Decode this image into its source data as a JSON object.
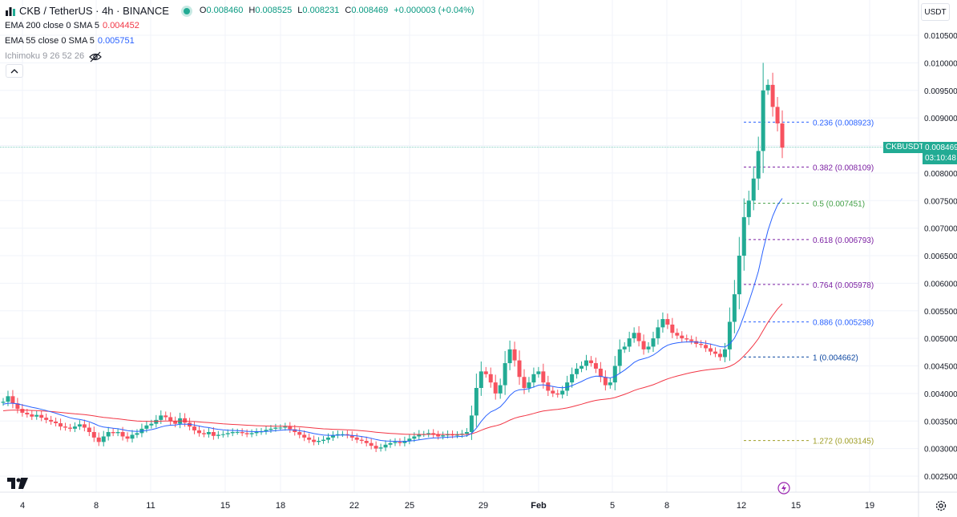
{
  "legend": {
    "symbol_title": "CKB / TetherUS · 4h · BINANCE",
    "open_label": "O",
    "open": "0.008460",
    "high_label": "H",
    "high": "0.008525",
    "low_label": "L",
    "low": "0.008231",
    "close_label": "C",
    "close": "0.008469",
    "change": "+0.000003 (+0.04%)",
    "indicators": {
      "ema200_name": "EMA 200 close 0 SMA 5",
      "ema200_value": "0.004452",
      "ema55_name": "EMA 55 close 0 SMA 5",
      "ema55_value": "0.005751",
      "ichimoku_name": "Ichimoku 9 26 52 26"
    }
  },
  "toolbar": {
    "currency": "USDT"
  },
  "price_tag": {
    "symbol": "CKBUSDT",
    "price": "0.008469",
    "countdown": "03:10:48"
  },
  "colors": {
    "up": "#22ab94",
    "down": "#f7525f",
    "ema200": "#f23645",
    "ema55": "#2962ff",
    "grid": "#f0f3fa"
  },
  "icons": [
    "chart-symbol-icon",
    "live-dot-icon",
    "eye-off-icon",
    "chevron-up-icon",
    "tradingview-logo",
    "flash-icon",
    "settings-icon"
  ],
  "chart_data": {
    "type": "candlestick",
    "y_ticks": [
      "0.002500",
      "0.003000",
      "0.003500",
      "0.004000",
      "0.004500",
      "0.005000",
      "0.005500",
      "0.006000",
      "0.006500",
      "0.007000",
      "0.007500",
      "0.008000",
      "0.008500",
      "0.009000",
      "0.009500",
      "0.010000",
      "0.010500"
    ],
    "y_range": [
      0.00225,
      0.01065
    ],
    "x_ticks": [
      "4",
      "8",
      "11",
      "15",
      "18",
      "22",
      "25",
      "29",
      "Feb",
      "5",
      "8",
      "12",
      "15",
      "19"
    ],
    "grid": true,
    "current_price": 0.008469,
    "fibonacci": [
      {
        "label": "0.236 (0.008923)",
        "value": 0.008923,
        "color": "#2962ff"
      },
      {
        "label": "0.382 (0.008109)",
        "value": 0.008109,
        "color": "#7b1fa2"
      },
      {
        "label": "0.5 (0.007451)",
        "value": 0.007451,
        "color": "#43a047"
      },
      {
        "label": "0.618 (0.006793)",
        "value": 0.006793,
        "color": "#7b1fa2"
      },
      {
        "label": "0.764 (0.005978)",
        "value": 0.005978,
        "color": "#7b1fa2"
      },
      {
        "label": "0.886 (0.005298)",
        "value": 0.005298,
        "color": "#2962ff"
      },
      {
        "label": "1 (0.004662)",
        "value": 0.004662,
        "color": "#0d47a1"
      },
      {
        "label": "1.272 (0.003145)",
        "value": 0.003145,
        "color": "#9e9d24"
      }
    ],
    "close_series": [
      0.00385,
      0.00395,
      0.00382,
      0.00372,
      0.00365,
      0.00362,
      0.00358,
      0.00361,
      0.00356,
      0.00352,
      0.00349,
      0.00346,
      0.0034,
      0.00338,
      0.00336,
      0.0034,
      0.00344,
      0.00338,
      0.0033,
      0.0032,
      0.00312,
      0.00322,
      0.0033,
      0.00328,
      0.0033,
      0.00322,
      0.00318,
      0.00325,
      0.00328,
      0.00336,
      0.00342,
      0.00345,
      0.00352,
      0.0036,
      0.00357,
      0.0035,
      0.00345,
      0.00355,
      0.00347,
      0.0034,
      0.00333,
      0.00328,
      0.00326,
      0.0033,
      0.00323,
      0.00325,
      0.00326,
      0.00328,
      0.0033,
      0.0033,
      0.00328,
      0.00326,
      0.00328,
      0.0033,
      0.00331,
      0.00334,
      0.00336,
      0.00338,
      0.00338,
      0.0034,
      0.00335,
      0.0033,
      0.00325,
      0.0032,
      0.00316,
      0.00312,
      0.00314,
      0.00316,
      0.0032,
      0.00324,
      0.00326,
      0.00326,
      0.00324,
      0.0032,
      0.00316,
      0.00314,
      0.0031,
      0.00305,
      0.003,
      0.00302,
      0.00307,
      0.0031,
      0.00312,
      0.0031,
      0.00314,
      0.00318,
      0.00322,
      0.00326,
      0.00326,
      0.00328,
      0.00325,
      0.00322,
      0.00324,
      0.00326,
      0.00324,
      0.00325,
      0.00327,
      0.0033,
      0.0036,
      0.0041,
      0.0044,
      0.00435,
      0.0042,
      0.004,
      0.00415,
      0.00455,
      0.0048,
      0.0046,
      0.0043,
      0.0041,
      0.0042,
      0.00435,
      0.0044,
      0.0042,
      0.00405,
      0.004,
      0.00398,
      0.00405,
      0.0042,
      0.00435,
      0.00445,
      0.0045,
      0.0046,
      0.00455,
      0.00445,
      0.0043,
      0.00415,
      0.0042,
      0.0045,
      0.0048,
      0.00485,
      0.005,
      0.0051,
      0.00495,
      0.0048,
      0.00485,
      0.005,
      0.0052,
      0.00535,
      0.00525,
      0.0051,
      0.00505,
      0.005,
      0.00498,
      0.00495,
      0.0049,
      0.00488,
      0.00482,
      0.00476,
      0.00472,
      0.00466,
      0.0048,
      0.0053,
      0.0058,
      0.0065,
      0.0072,
      0.0075,
      0.0079,
      0.0084,
      0.0095,
      0.0096,
      0.0092,
      0.0089,
      0.00846
    ],
    "series": [
      {
        "name": "EMA 200 close 0 SMA 5",
        "last": 0.004452
      },
      {
        "name": "EMA 55 close 0 SMA 5",
        "last": 0.005751
      }
    ]
  }
}
